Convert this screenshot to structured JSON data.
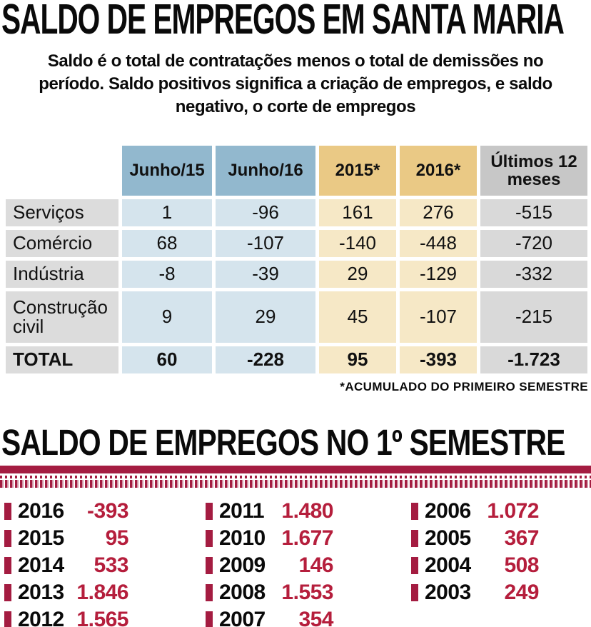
{
  "colors": {
    "maroon": "#a41c41",
    "value-red": "#b51e3c",
    "stripe-pink": "#cf93a4",
    "header-blue": "#92b8ce",
    "cell-blue": "#d5e4ed",
    "header-tan": "#eac985",
    "cell-tan": "#f6e8c6",
    "header-gray": "#c7c7c7",
    "cell-gray": "#d9d9d9",
    "label-gray": "#dcdcdc"
  },
  "header": {
    "title": "SALDO DE EMPREGOS EM SANTA MARIA",
    "subtitle_lines": [
      "Saldo é o total de contratações menos o total de demissões no",
      "período. Saldo positivos significa a criação de empregos, e saldo",
      "negativo, o corte de empregos"
    ]
  },
  "table": {
    "columns": [
      "Junho/15",
      "Junho/16",
      "2015*",
      "2016*",
      "Últimos 12 meses"
    ],
    "rows": [
      {
        "label": "Serviços",
        "values": [
          "1",
          "-96",
          "161",
          "276",
          "-515"
        ]
      },
      {
        "label": "Comércio",
        "values": [
          "68",
          "-107",
          "-140",
          "-448",
          "-720"
        ]
      },
      {
        "label": "Indústria",
        "values": [
          "-8",
          "-39",
          "29",
          "-129",
          "-332"
        ]
      },
      {
        "label": "Construção civil",
        "values": [
          "9",
          "29",
          "45",
          "-107",
          "-215"
        ]
      },
      {
        "label": "TOTAL",
        "values": [
          "60",
          "-228",
          "95",
          "-393",
          "-1.723"
        ]
      }
    ],
    "footnote": "*ACUMULADO DO PRIMEIRO SEMESTRE"
  },
  "semester": {
    "title": "SALDO DE EMPREGOS NO 1º SEMESTRE",
    "entries": [
      {
        "year": "2016",
        "value": "-393"
      },
      {
        "year": "2015",
        "value": "95"
      },
      {
        "year": "2014",
        "value": "533"
      },
      {
        "year": "2013",
        "value": "1.846"
      },
      {
        "year": "2012",
        "value": "1.565"
      },
      {
        "year": "2011",
        "value": "1.480"
      },
      {
        "year": "2010",
        "value": "1.677"
      },
      {
        "year": "2009",
        "value": "146"
      },
      {
        "year": "2008",
        "value": "1.553"
      },
      {
        "year": "2007",
        "value": "354"
      },
      {
        "year": "2006",
        "value": "1.072"
      },
      {
        "year": "2005",
        "value": "367"
      },
      {
        "year": "2004",
        "value": "508"
      },
      {
        "year": "2003",
        "value": "249"
      }
    ]
  },
  "chart_data": [
    {
      "type": "table",
      "title": "SALDO DE EMPREGOS EM SANTA MARIA",
      "columns": [
        "",
        "Junho/15",
        "Junho/16",
        "2015*",
        "2016*",
        "Últimos 12 meses"
      ],
      "rows": [
        [
          "Serviços",
          1,
          -96,
          161,
          276,
          -515
        ],
        [
          "Comércio",
          68,
          -107,
          -140,
          -448,
          -720
        ],
        [
          "Indústria",
          -8,
          -39,
          29,
          -129,
          -332
        ],
        [
          "Construção civil",
          9,
          29,
          45,
          -107,
          -215
        ],
        [
          "TOTAL",
          60,
          -228,
          95,
          -393,
          -1723
        ]
      ],
      "footnote": "*ACUMULADO DO PRIMEIRO SEMESTRE"
    },
    {
      "type": "table",
      "title": "SALDO DE EMPREGOS NO 1º SEMESTRE",
      "categories": [
        2016,
        2015,
        2014,
        2013,
        2012,
        2011,
        2010,
        2009,
        2008,
        2007,
        2006,
        2005,
        2004,
        2003
      ],
      "values": [
        -393,
        95,
        533,
        1846,
        1565,
        1480,
        1677,
        146,
        1553,
        354,
        1072,
        367,
        508,
        249
      ]
    }
  ]
}
